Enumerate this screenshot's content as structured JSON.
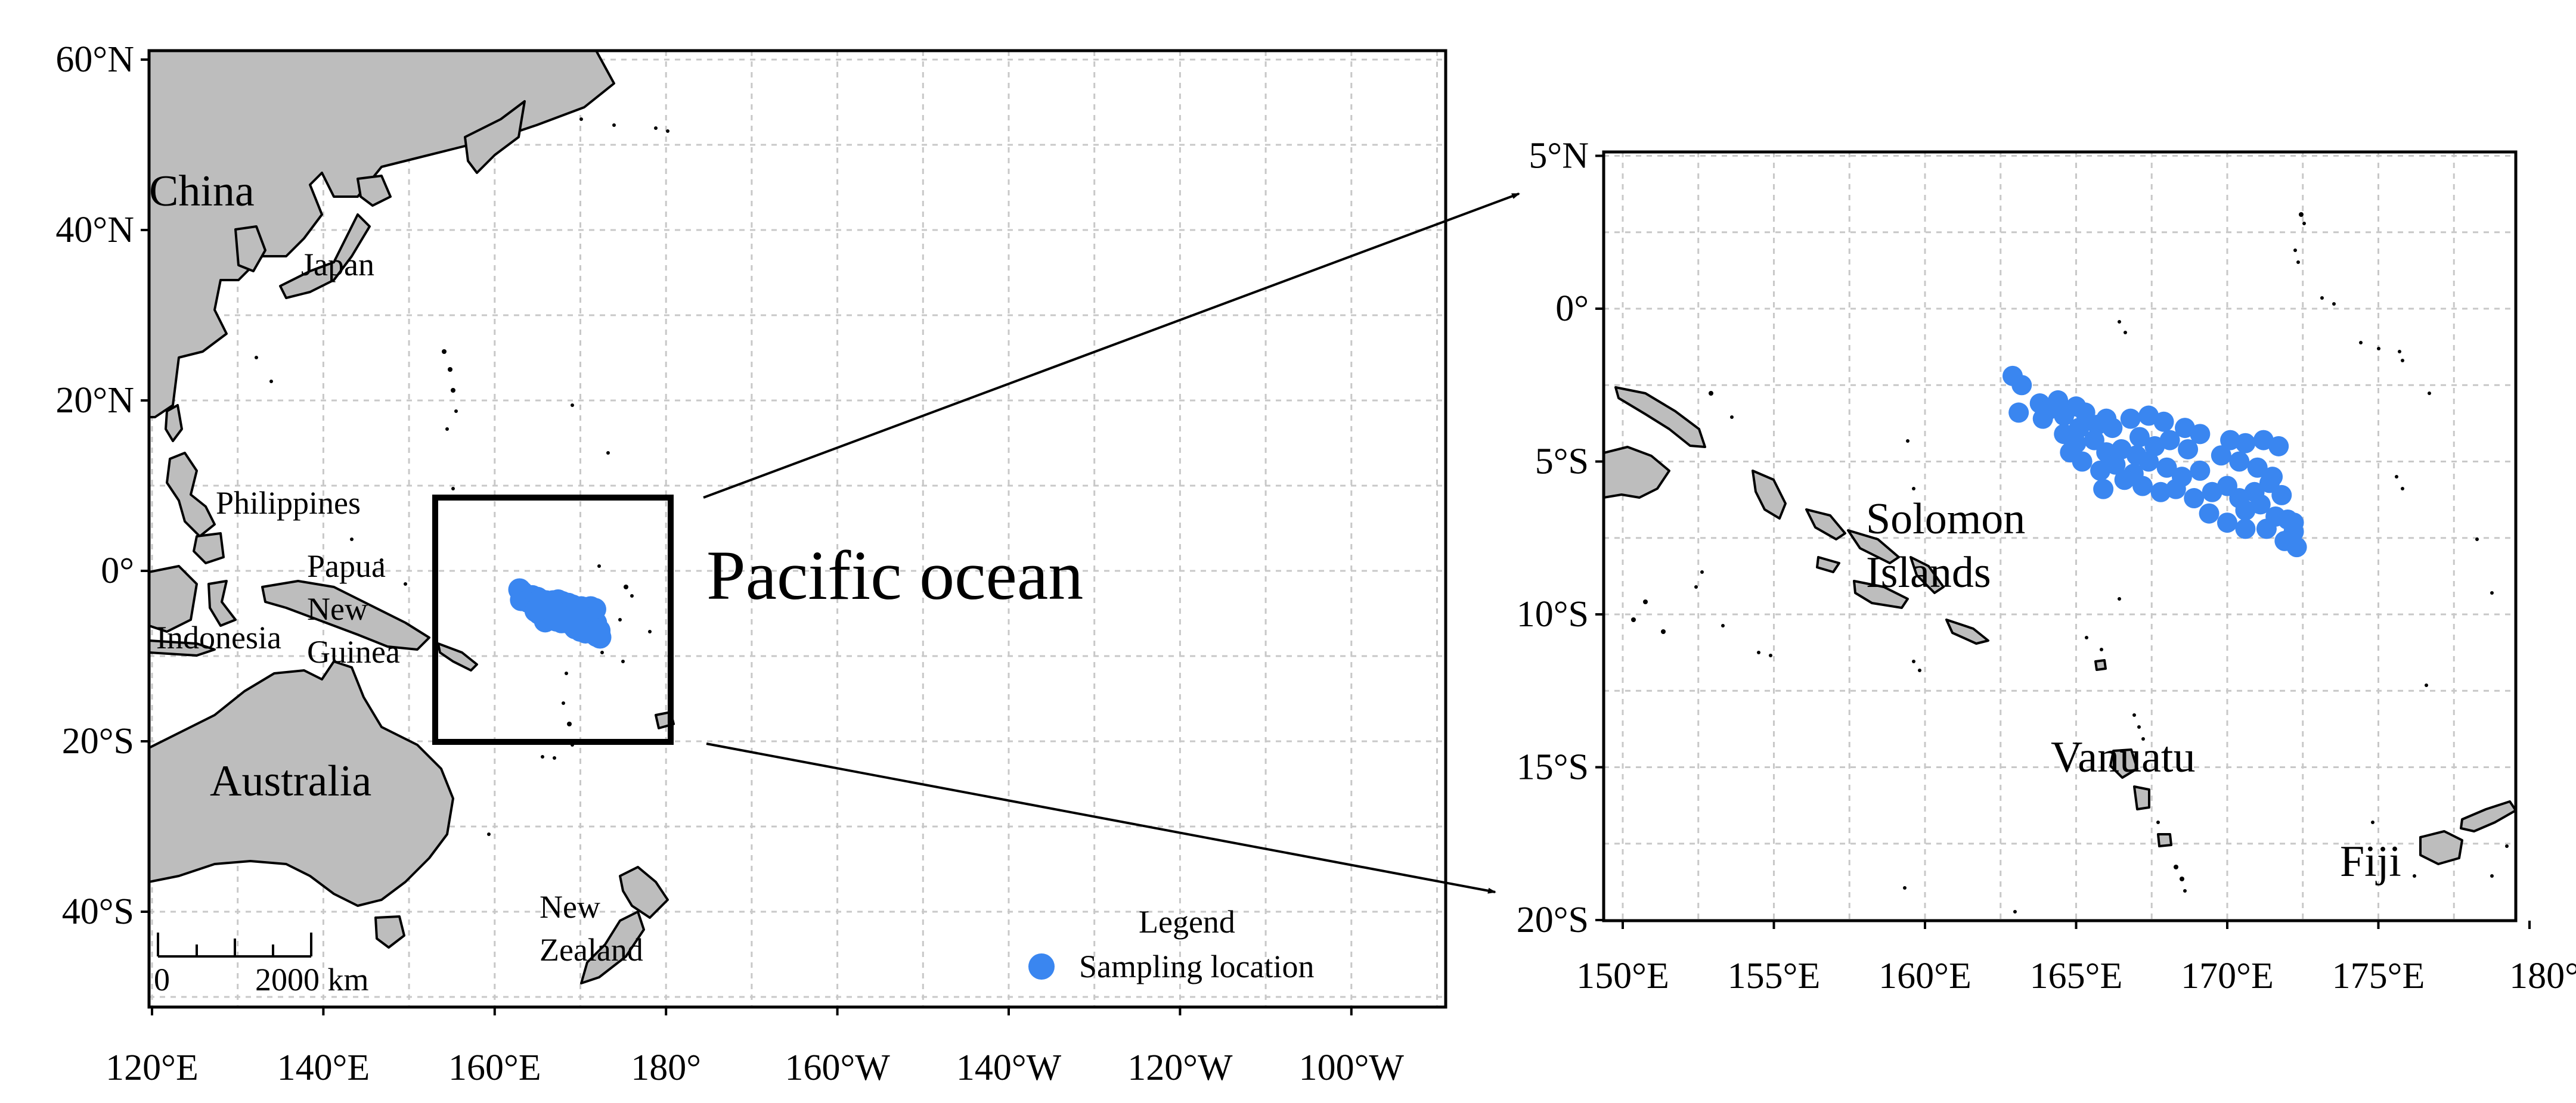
{
  "overview_map": {
    "lon_ticks": [
      "120°E",
      "140°E",
      "160°E",
      "180°",
      "160°W",
      "140°W",
      "120°W",
      "100°W"
    ],
    "lat_ticks": [
      "60°N",
      "40°N",
      "20°N",
      "0°",
      "20°S",
      "40°S"
    ],
    "labels": {
      "china": "China",
      "japan": "Japan",
      "philippines": "Philippines",
      "papua_line1": "Papua",
      "papua_line2": "New",
      "papua_line3": "Guinea",
      "indonesia": "Indonesia",
      "australia": "Australia",
      "nz_line1": "New",
      "nz_line2": "Zealand",
      "pacific": "Pacific ocean"
    },
    "scale_bar": {
      "start_label": "0",
      "end_label": "2000 km"
    },
    "legend": {
      "title": "Legend",
      "entry": "Sampling location",
      "marker_color": "#3a86f0"
    }
  },
  "inset_map": {
    "lon_ticks": [
      "150°E",
      "155°E",
      "160°E",
      "165°E",
      "170°E",
      "175°E",
      "180°"
    ],
    "lat_ticks": [
      "5°N",
      "0°",
      "5°S",
      "10°S",
      "15°S",
      "20°S"
    ],
    "labels": {
      "solomon_line1": "Solomon",
      "solomon_line2": "Islands",
      "vanuatu": "Vanuatu",
      "fiji": "Fiji"
    }
  },
  "colors": {
    "land": "#bdbdbd",
    "outline": "#000000",
    "grid": "#c8c8c8",
    "points": "#3a86f0"
  },
  "sampling_points": [
    [
      162.9,
      -2.2
    ],
    [
      163.2,
      -2.5
    ],
    [
      163.1,
      -3.4
    ],
    [
      163.8,
      -3.1
    ],
    [
      164.1,
      -3.3
    ],
    [
      164.4,
      -3.0
    ],
    [
      163.9,
      -3.6
    ],
    [
      164.6,
      -3.5
    ],
    [
      165.0,
      -3.2
    ],
    [
      165.3,
      -3.4
    ],
    [
      165.1,
      -3.9
    ],
    [
      165.7,
      -3.8
    ],
    [
      166.2,
      -3.9
    ],
    [
      166.8,
      -3.6
    ],
    [
      167.4,
      -3.5
    ],
    [
      167.9,
      -3.7
    ],
    [
      168.6,
      -3.9
    ],
    [
      169.1,
      -4.1
    ],
    [
      164.6,
      -4.1
    ],
    [
      165.0,
      -4.4
    ],
    [
      165.6,
      -4.3
    ],
    [
      166.0,
      -4.7
    ],
    [
      166.5,
      -4.6
    ],
    [
      167.1,
      -4.2
    ],
    [
      167.6,
      -4.5
    ],
    [
      168.1,
      -4.3
    ],
    [
      168.7,
      -4.6
    ],
    [
      165.2,
      -5.0
    ],
    [
      165.8,
      -5.3
    ],
    [
      166.3,
      -5.1
    ],
    [
      166.9,
      -5.4
    ],
    [
      167.4,
      -5.0
    ],
    [
      168.0,
      -5.2
    ],
    [
      168.5,
      -5.5
    ],
    [
      169.1,
      -5.3
    ],
    [
      165.9,
      -5.9
    ],
    [
      166.6,
      -5.6
    ],
    [
      167.2,
      -5.8
    ],
    [
      167.8,
      -6.0
    ],
    [
      164.8,
      -4.7
    ],
    [
      166.0,
      -3.6
    ],
    [
      167.0,
      -4.8
    ],
    [
      169.5,
      -6.0
    ],
    [
      170.0,
      -5.8
    ],
    [
      170.4,
      -6.2
    ],
    [
      170.9,
      -6.0
    ],
    [
      171.4,
      -5.7
    ],
    [
      171.8,
      -6.1
    ],
    [
      170.1,
      -4.3
    ],
    [
      170.6,
      -4.4
    ],
    [
      171.2,
      -4.3
    ],
    [
      171.7,
      -4.5
    ],
    [
      169.8,
      -4.8
    ],
    [
      170.4,
      -5.0
    ],
    [
      171.0,
      -5.2
    ],
    [
      171.5,
      -5.5
    ],
    [
      170.6,
      -6.6
    ],
    [
      171.1,
      -6.4
    ],
    [
      171.6,
      -6.8
    ],
    [
      172.0,
      -6.9
    ],
    [
      172.2,
      -7.3
    ],
    [
      171.9,
      -7.6
    ],
    [
      172.3,
      -7.8
    ],
    [
      170.0,
      -7.0
    ],
    [
      170.6,
      -7.2
    ],
    [
      171.3,
      -7.2
    ],
    [
      169.4,
      -6.7
    ],
    [
      168.9,
      -6.2
    ],
    [
      168.3,
      -5.9
    ],
    [
      172.2,
      -7.0
    ]
  ]
}
